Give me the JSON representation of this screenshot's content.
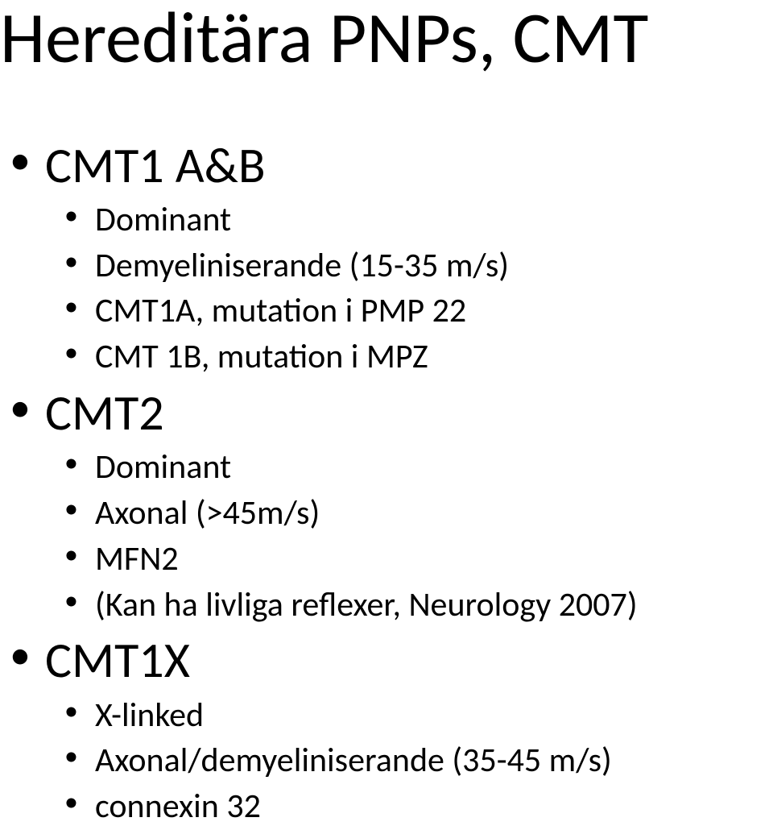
{
  "title": "Hereditära PNPs, CMT",
  "items": [
    {
      "level": 1,
      "text": "CMT1 A&B"
    },
    {
      "level": 2,
      "text": "Dominant"
    },
    {
      "level": 2,
      "text": "Demyeliniserande (15-35 m/s)"
    },
    {
      "level": 2,
      "text": "CMT1A, mutation i PMP 22"
    },
    {
      "level": 2,
      "text": "CMT 1B, mutation i MPZ"
    },
    {
      "level": 1,
      "text": "CMT2"
    },
    {
      "level": 2,
      "text": "Dominant"
    },
    {
      "level": 2,
      "text": "Axonal (>45m/s)"
    },
    {
      "level": 2,
      "text": "MFN2"
    },
    {
      "level": 2,
      "text": "(Kan ha livliga reflexer, Neurology 2007)"
    },
    {
      "level": 1,
      "text": "CMT1X"
    },
    {
      "level": 2,
      "text": "X-linked"
    },
    {
      "level": 2,
      "text": "Axonal/demyeliniserande (35-45 m/s)"
    },
    {
      "level": 2,
      "text": "connexin 32"
    }
  ],
  "style": {
    "background_color": "#ffffff",
    "text_color": "#000000",
    "font_family": "Calibri",
    "title_fontsize": 90,
    "level1_fontsize": 62,
    "level2_fontsize": 42
  }
}
